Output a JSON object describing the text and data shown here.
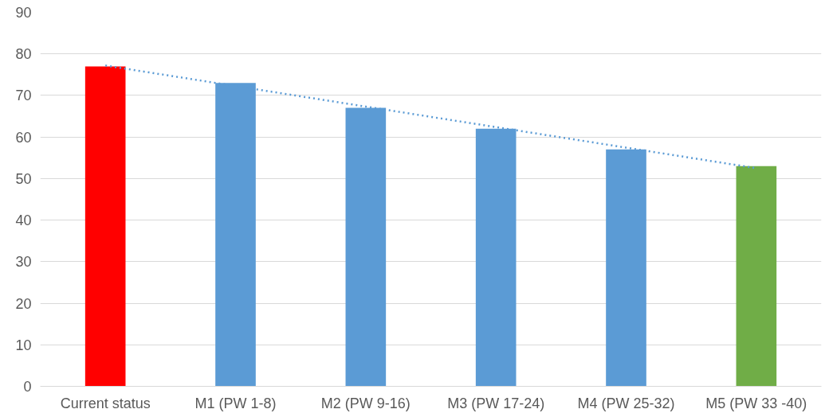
{
  "chart_data": {
    "type": "bar",
    "categories": [
      "Current status",
      "M1 (PW 1-8)",
      "M2 (PW 9-16)",
      "M3 (PW 17-24)",
      "M4 (PW 25-32)",
      "M5 (PW 33 -40)"
    ],
    "series": [
      {
        "colors": [
          "#ff0000",
          "#5b9bd5",
          "#5b9bd5",
          "#5b9bd5",
          "#5b9bd5",
          "#70ad47"
        ],
        "values": [
          77,
          73,
          67,
          62,
          57,
          53
        ]
      },
      {
        "type": "line",
        "color": "#5b9bd5",
        "line_style": "dotted",
        "x": [
          "Current status",
          "M5 (PW 33 -40)"
        ],
        "values": [
          77.2,
          52.5
        ]
      }
    ],
    "ylim": [
      0,
      90
    ],
    "yticks": [
      0,
      10,
      20,
      30,
      40,
      50,
      60,
      70,
      80,
      90
    ],
    "grid": "y"
  }
}
